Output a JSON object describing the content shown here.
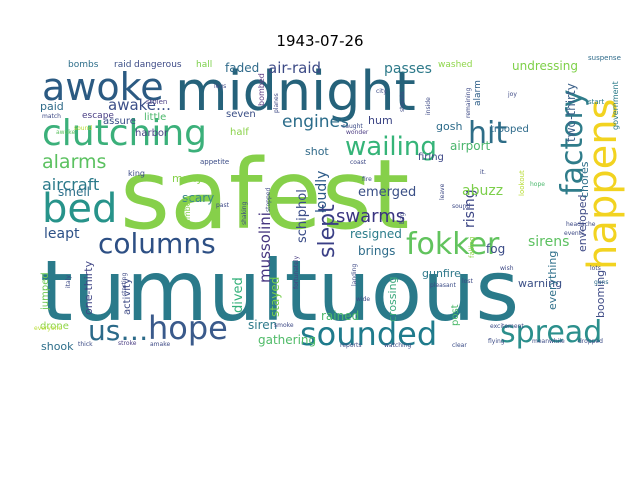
{
  "title": "1943-07-26",
  "words": [
    {
      "text": "tumultuous",
      "color": "#2a7a8a"
    },
    {
      "text": "safest",
      "color": "#86d04a"
    },
    {
      "text": "midnight",
      "color": "#25627a"
    },
    {
      "text": "awoke",
      "color": "#2b5a82"
    },
    {
      "text": "clutching",
      "color": "#3bb07a"
    },
    {
      "text": "happens",
      "color": "#f2d320"
    },
    {
      "text": "bed",
      "color": "#27938a"
    },
    {
      "text": "hit",
      "color": "#2e6d87"
    },
    {
      "text": "factory",
      "color": "#2f7c8a"
    },
    {
      "text": "sounded",
      "color": "#1f7b8c"
    },
    {
      "text": "spread",
      "color": "#2b8f8c"
    },
    {
      "text": "hope",
      "color": "#3a5a8b"
    },
    {
      "text": "us…",
      "color": "#2b6a89"
    },
    {
      "text": "columns",
      "color": "#2d4f84"
    },
    {
      "text": "fokker",
      "color": "#61c35d"
    },
    {
      "text": "wailing",
      "color": "#35b478"
    },
    {
      "text": "alarms",
      "color": "#5bc160"
    },
    {
      "text": "aircraft",
      "color": "#2b7a8a"
    },
    {
      "text": "slept",
      "color": "#3a3f86"
    },
    {
      "text": "engines",
      "color": "#2b6c8a"
    },
    {
      "text": "awake…",
      "color": "#3c4f88"
    },
    {
      "text": "mussolini",
      "color": "#463680"
    },
    {
      "text": "schiphol",
      "color": "#3b4d88"
    },
    {
      "text": "swarms",
      "color": "#3a3480"
    },
    {
      "text": "air-raid",
      "color": "#3c4a86"
    },
    {
      "text": "faded",
      "color": "#2f6a8a"
    },
    {
      "text": "passes",
      "color": "#2e7a8a"
    },
    {
      "text": "undressing",
      "color": "#7ed048"
    },
    {
      "text": "two-thirty",
      "color": "#3a5f88"
    },
    {
      "text": "loudly",
      "color": "#2e5b88"
    },
    {
      "text": "shot",
      "color": "#316a89"
    },
    {
      "text": "emerged",
      "color": "#3a4f86"
    },
    {
      "text": "rising",
      "color": "#3b4484"
    },
    {
      "text": "sirens",
      "color": "#5cc160"
    },
    {
      "text": "enveloped",
      "color": "#3e4a86"
    },
    {
      "text": "chores",
      "color": "#2d6f8a"
    },
    {
      "text": "abuzz",
      "color": "#7ccf4a"
    },
    {
      "text": "airport",
      "color": "#4ab56c"
    },
    {
      "text": "resigned",
      "color": "#2b7c8b"
    },
    {
      "text": "brings",
      "color": "#2e6c8a"
    },
    {
      "text": "fog",
      "color": "#3a4a86"
    },
    {
      "text": "leapt",
      "color": "#2d5187"
    },
    {
      "text": "smell",
      "color": "#2b6f8a"
    },
    {
      "text": "many",
      "color": "#86d24a"
    },
    {
      "text": "scary",
      "color": "#3a8a8a"
    },
    {
      "text": "stayed",
      "color": "#77ce4c"
    },
    {
      "text": "dived",
      "color": "#33b079"
    },
    {
      "text": "siren",
      "color": "#2f7a8b"
    },
    {
      "text": "gathering",
      "color": "#4fbb68"
    },
    {
      "text": "rained",
      "color": "#4cb96a"
    },
    {
      "text": "crossing",
      "color": "#3ba87c"
    },
    {
      "text": "gunfire",
      "color": "#2e788a"
    },
    {
      "text": "warning",
      "color": "#3b5087"
    },
    {
      "text": "booming",
      "color": "#3f4c87"
    },
    {
      "text": "everything",
      "color": "#2f6f8a"
    },
    {
      "text": "shook",
      "color": "#2d6e8a"
    },
    {
      "text": "one-thirty",
      "color": "#3f4585"
    },
    {
      "text": "jumped",
      "color": "#6ec852"
    },
    {
      "text": "drone",
      "color": "#8ed548"
    },
    {
      "text": "activity",
      "color": "#3f4b86"
    },
    {
      "text": "post",
      "color": "#4db96b"
    },
    {
      "text": "hum",
      "color": "#3b4484"
    },
    {
      "text": "gosh",
      "color": "#2c6a89"
    },
    {
      "text": "firing",
      "color": "#3b4585"
    },
    {
      "text": "paid",
      "color": "#2f6b89"
    },
    {
      "text": "little",
      "color": "#4cb86b"
    },
    {
      "text": "half",
      "color": "#8ad24a"
    },
    {
      "text": "seven",
      "color": "#3a4e86"
    },
    {
      "text": "harbor",
      "color": "#4a4384"
    },
    {
      "text": "assure",
      "color": "#3b4e87"
    },
    {
      "text": "escape",
      "color": "#4a3f84"
    },
    {
      "text": "raid",
      "color": "#3b5087"
    },
    {
      "text": "bombs",
      "color": "#2e6e8a"
    },
    {
      "text": "dangerous",
      "color": "#3d4a86"
    },
    {
      "text": "hall",
      "color": "#7cd04a"
    },
    {
      "text": "washed",
      "color": "#8fd64a"
    },
    {
      "text": "bombed",
      "color": "#5f3f86"
    },
    {
      "text": "alarm",
      "color": "#2f5f88"
    },
    {
      "text": "trooped",
      "color": "#2d6a8a"
    },
    {
      "text": "government",
      "color": "#2d7c8a"
    },
    {
      "text": "king",
      "color": "#3c4b86"
    },
    {
      "text": "climbed",
      "color": "#86d24a"
    },
    {
      "text": "appetite",
      "color": "#3a4b86"
    },
    {
      "text": "stolen",
      "color": "#4c3f84"
    },
    {
      "text": "suspense",
      "color": "#2f6b8a"
    },
    {
      "text": "start",
      "color": "#2b7b8a"
    },
    {
      "text": "city",
      "color": "#3b4b86"
    },
    {
      "text": "wonder",
      "color": "#4e3e84"
    },
    {
      "text": "caught",
      "color": "#3b4a86"
    },
    {
      "text": "fire",
      "color": "#3b4a86"
    },
    {
      "text": "guns",
      "color": "#2d6a8a"
    },
    {
      "text": "lookout",
      "color": "#b8dc34"
    },
    {
      "text": "hope",
      "color": "#4ab86c"
    },
    {
      "text": "sound",
      "color": "#3d4985"
    },
    {
      "text": "falling",
      "color": "#8ed548"
    },
    {
      "text": "fortunately",
      "color": "#4c3f84"
    },
    {
      "text": "pleasant",
      "color": "#3a4b86"
    },
    {
      "text": "excitement",
      "color": "#3a4b86"
    },
    {
      "text": "watching",
      "color": "#3b4b86"
    },
    {
      "text": "clear",
      "color": "#3a4b86"
    },
    {
      "text": "flying",
      "color": "#3b4b86"
    },
    {
      "text": "dropped",
      "color": "#3b4b86"
    },
    {
      "text": "meanwhile",
      "color": "#3b4b86"
    },
    {
      "text": "reports",
      "color": "#3b4b86"
    },
    {
      "text": "stroke",
      "color": "#4c3f84"
    },
    {
      "text": "amake",
      "color": "#3d4985"
    },
    {
      "text": "thick",
      "color": "#3b4b86"
    },
    {
      "text": "italy",
      "color": "#3d4985"
    },
    {
      "text": "match",
      "color": "#3d4985"
    },
    {
      "text": "awoke",
      "color": "#5cc160"
    },
    {
      "text": "sound",
      "color": "#b8dc34"
    },
    {
      "text": "smoke",
      "color": "#3d4985"
    },
    {
      "text": "landing",
      "color": "#3d4985"
    },
    {
      "text": "wide",
      "color": "#3d4985"
    },
    {
      "text": "starting",
      "color": "#3d4985"
    },
    {
      "text": "past",
      "color": "#3d4985"
    },
    {
      "text": "events",
      "color": "#3d4985"
    },
    {
      "text": "headache",
      "color": "#3d4985"
    },
    {
      "text": "lots",
      "color": "#3d4985"
    },
    {
      "text": "lost",
      "color": "#3d4985"
    },
    {
      "text": "everyone",
      "color": "#b8dc34"
    },
    {
      "text": "planes",
      "color": "#3d4985"
    },
    {
      "text": "legs",
      "color": "#3d4985"
    },
    {
      "text": "streets",
      "color": "#3d4985"
    },
    {
      "text": "stopped",
      "color": "#3d4985"
    },
    {
      "text": "joy",
      "color": "#3d4985"
    },
    {
      "text": "it.",
      "color": "#3d4985"
    },
    {
      "text": "wish",
      "color": "#3d4985"
    },
    {
      "text": "coast",
      "color": "#3d4985"
    },
    {
      "text": "leave",
      "color": "#3d4985"
    },
    {
      "text": "remaining",
      "color": "#3d4985"
    },
    {
      "text": "inside",
      "color": "#3d4985"
    },
    {
      "text": "shaking",
      "color": "#3d4985"
    },
    {
      "text": "bag",
      "color": "#3d4985"
    }
  ]
}
